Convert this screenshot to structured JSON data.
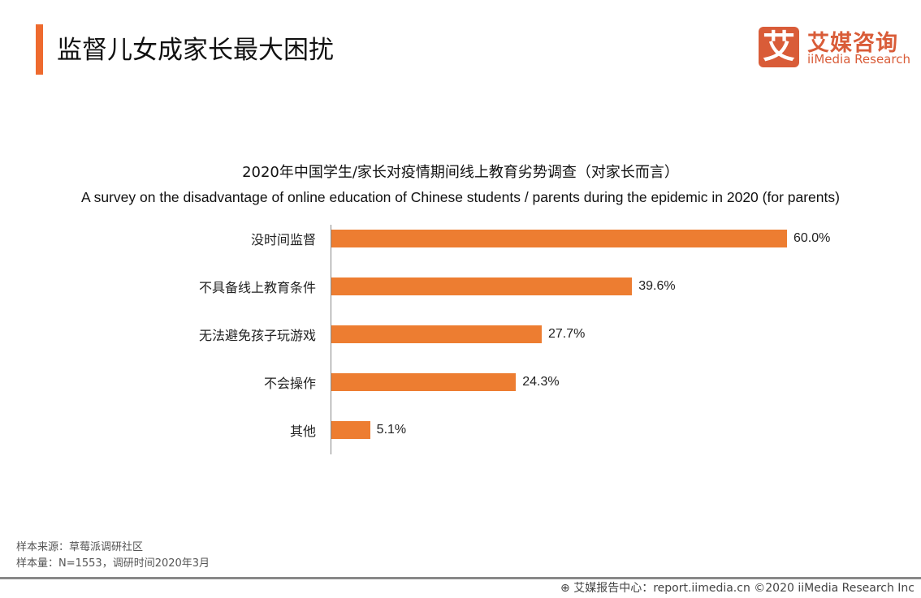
{
  "header": {
    "title": "监督儿女成家长最大困扰"
  },
  "logo": {
    "mark": "艾",
    "cn": "艾媒咨询",
    "en": "iiMedia Research"
  },
  "chart_data": {
    "type": "bar",
    "orientation": "horizontal",
    "title": "2020年中国学生/家长对疫情期间线上教育劣势调查（对家长而言）",
    "subtitle": "A survey on the disadvantage of online education of Chinese students / parents during the epidemic in 2020 (for parents)",
    "categories": [
      "没时间监督",
      "不具备线上教育条件",
      "无法避免孩子玩游戏",
      "不会操作",
      "其他"
    ],
    "values": [
      60.0,
      39.6,
      27.7,
      24.3,
      5.1
    ],
    "labels": [
      "60.0%",
      "39.6%",
      "27.7%",
      "24.3%",
      "5.1%"
    ],
    "color": "#ed7d31",
    "xlim": [
      0,
      60
    ]
  },
  "notes": {
    "source": "样本来源：草莓派调研社区",
    "sample": "样本量：N=1553，调研时间2020年3月"
  },
  "footer": {
    "text": "艾媒报告中心：report.iimedia.cn  ©2020  iiMedia Research  Inc"
  }
}
